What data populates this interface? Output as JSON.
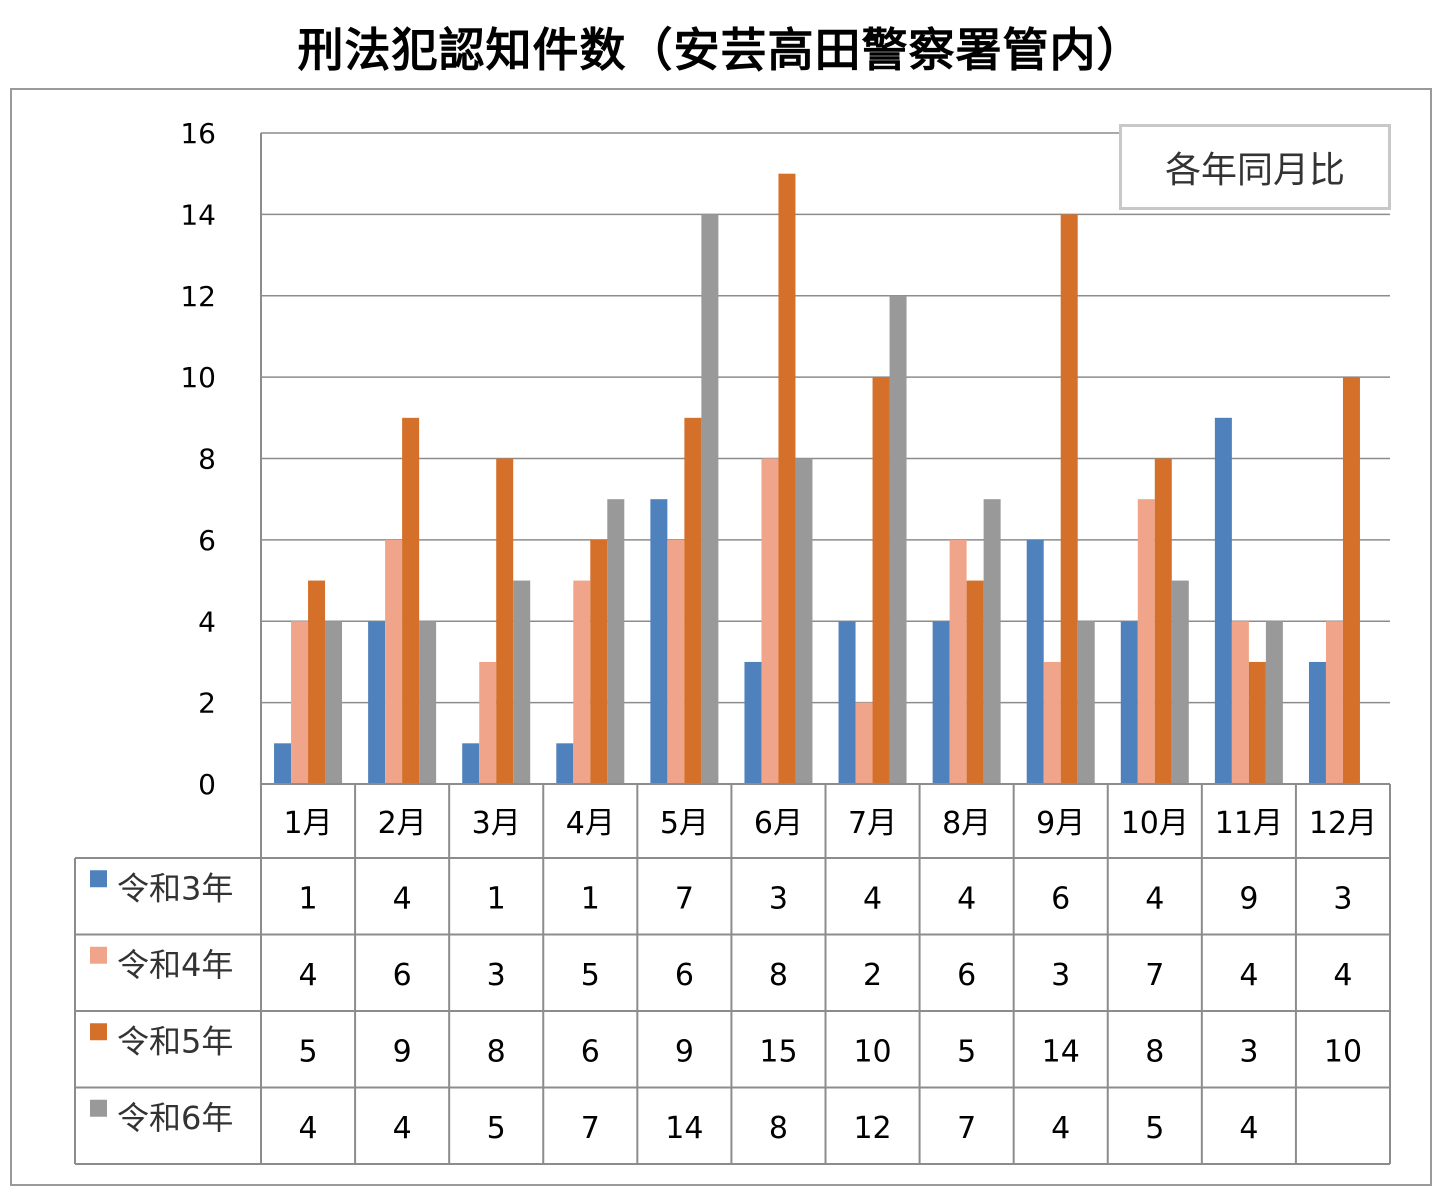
{
  "title": "刑法犯認知件数（安芸高田警察署管内）",
  "note": "各年同月比",
  "chart_data": {
    "type": "bar",
    "title": "刑法犯認知件数（安芸高田警察署管内）",
    "categories": [
      "1月",
      "2月",
      "3月",
      "4月",
      "5月",
      "6月",
      "7月",
      "8月",
      "9月",
      "10月",
      "11月",
      "12月"
    ],
    "series": [
      {
        "name": "令和3年",
        "color": "#4f81bd",
        "values": [
          1,
          4,
          1,
          1,
          7,
          3,
          4,
          4,
          6,
          4,
          9,
          3
        ]
      },
      {
        "name": "令和4年",
        "color": "#f0a58a",
        "values": [
          4,
          6,
          3,
          5,
          6,
          8,
          2,
          6,
          3,
          7,
          4,
          4
        ]
      },
      {
        "name": "令和5年",
        "color": "#d4702a",
        "values": [
          5,
          9,
          8,
          6,
          9,
          15,
          10,
          5,
          14,
          8,
          3,
          10
        ]
      },
      {
        "name": "令和6年",
        "color": "#999999",
        "values": [
          4,
          4,
          5,
          7,
          14,
          8,
          12,
          7,
          4,
          5,
          4,
          null
        ]
      }
    ],
    "ylim": [
      0,
      16
    ],
    "yticks": [
      0,
      2,
      4,
      6,
      8,
      10,
      12,
      14,
      16
    ],
    "grid": true,
    "legend": "data-table"
  }
}
